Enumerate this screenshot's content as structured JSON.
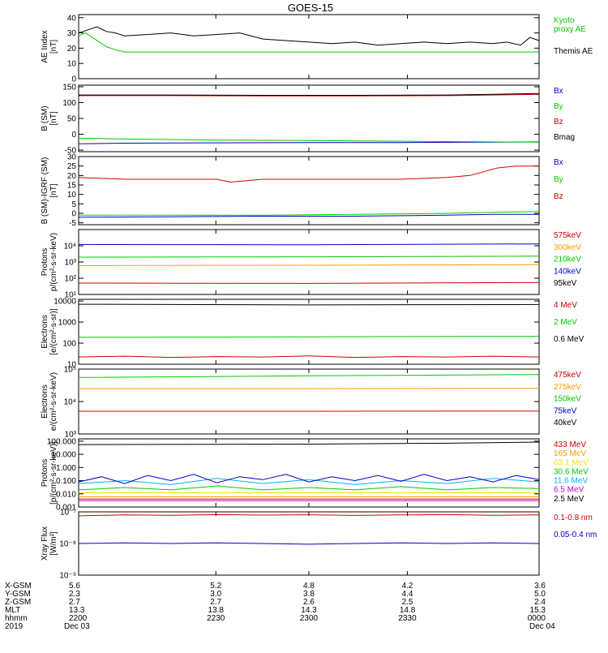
{
  "title": "GOES-15",
  "colors": {
    "black": "#000000",
    "green": "#00cc00",
    "red": "#cc0000",
    "blue": "#0000cc",
    "orange": "#ff9900",
    "cyan": "#00b0ff",
    "magenta": "#cc00cc",
    "yellow": "#e6e600"
  },
  "chart_data": [
    {
      "type": "line",
      "id": "ae",
      "ylabel": [
        "AE Index",
        "[nT]"
      ],
      "scale": "linear",
      "ylim": [
        0,
        42
      ],
      "yticks": [
        0,
        10,
        20,
        30,
        40
      ],
      "yticklabels": [
        "0",
        "10",
        "20",
        "30",
        "40"
      ],
      "series": [
        {
          "name": "Kyoto proxy AE",
          "color": "#00cc00",
          "label_lines": [
            "Kyoto",
            "proxy AE"
          ],
          "x": [
            0,
            0.015,
            0.03,
            0.045,
            0.06,
            0.08,
            0.1,
            0.15,
            0.3,
            0.5,
            0.7,
            0.9,
            1.0
          ],
          "values": [
            28,
            30,
            27,
            24,
            21,
            19,
            17.5,
            17.5,
            17.5,
            17.5,
            17.5,
            17.5,
            17.5
          ]
        },
        {
          "name": "Themis AE",
          "color": "#000000",
          "label_lines": [
            "Themis AE"
          ],
          "x": [
            0,
            0.02,
            0.04,
            0.06,
            0.08,
            0.1,
            0.15,
            0.2,
            0.25,
            0.3,
            0.35,
            0.4,
            0.45,
            0.5,
            0.55,
            0.6,
            0.65,
            0.7,
            0.75,
            0.8,
            0.85,
            0.9,
            0.93,
            0.96,
            0.98,
            1.0
          ],
          "values": [
            30,
            32,
            34,
            31,
            30,
            28,
            29,
            30,
            28,
            29,
            30,
            26,
            25,
            24,
            23,
            24,
            22,
            23,
            24,
            23,
            24,
            23,
            24,
            22,
            27,
            25
          ]
        }
      ]
    },
    {
      "type": "line",
      "id": "bsm",
      "ylabel": [
        "B (SM)",
        "[nT]"
      ],
      "scale": "linear",
      "ylim": [
        -55,
        155
      ],
      "yticks": [
        -50,
        0,
        50,
        100,
        150
      ],
      "yticklabels": [
        "-50",
        "0",
        "50",
        "100",
        "150"
      ],
      "series": [
        {
          "name": "Bx",
          "color": "#0000cc",
          "x": [
            0,
            0.1,
            0.3,
            0.5,
            0.7,
            0.9,
            1.0
          ],
          "values": [
            -30,
            -28,
            -27,
            -26,
            -26,
            -25,
            -24
          ]
        },
        {
          "name": "By",
          "color": "#00cc00",
          "x": [
            0,
            0.1,
            0.3,
            0.5,
            0.7,
            0.9,
            1.0
          ],
          "values": [
            -12,
            -15,
            -18,
            -20,
            -22,
            -24,
            -25
          ]
        },
        {
          "name": "Bz",
          "color": "#cc0000",
          "x": [
            0,
            0.2,
            0.4,
            0.6,
            0.8,
            0.9,
            1.0
          ],
          "values": [
            122,
            122,
            121,
            121,
            122,
            124,
            126
          ]
        },
        {
          "name": "Bmag",
          "color": "#000000",
          "x": [
            0,
            0.2,
            0.4,
            0.6,
            0.8,
            0.9,
            1.0
          ],
          "values": [
            124,
            124,
            123,
            123,
            124,
            126,
            129
          ]
        }
      ]
    },
    {
      "type": "line",
      "id": "bigrf",
      "ylabel": [
        "B (SM)-IGRF (SM)",
        "[nT]"
      ],
      "scale": "linear",
      "ylim": [
        -6,
        30
      ],
      "yticks": [
        -5,
        0,
        5,
        10,
        15,
        20,
        25,
        30
      ],
      "yticklabels": [
        "-5",
        "0",
        "5",
        "10",
        "15",
        "20",
        "25",
        "30"
      ],
      "series": [
        {
          "name": "Bx",
          "color": "#0000cc",
          "x": [
            0,
            0.2,
            0.4,
            0.6,
            0.8,
            0.9,
            1.0
          ],
          "values": [
            -2,
            -1.8,
            -1.5,
            -1.5,
            -1,
            -0.5,
            -0.5
          ]
        },
        {
          "name": "By",
          "color": "#00cc00",
          "x": [
            0,
            0.2,
            0.4,
            0.6,
            0.8,
            0.9,
            1.0
          ],
          "values": [
            -1,
            -1,
            -1,
            -0.5,
            0,
            0.5,
            1
          ]
        },
        {
          "name": "Bz",
          "color": "#cc0000",
          "x": [
            0,
            0.1,
            0.2,
            0.3,
            0.33,
            0.4,
            0.5,
            0.6,
            0.7,
            0.8,
            0.85,
            0.88,
            0.91,
            0.95,
            1.0
          ],
          "values": [
            19,
            18,
            18,
            18,
            16.5,
            18,
            18,
            18,
            18,
            19,
            20,
            22,
            24,
            25,
            25
          ]
        }
      ]
    },
    {
      "type": "line",
      "id": "protons1",
      "ylabel": [
        "Protons",
        "p/(cm²-s-sr-keV)"
      ],
      "scale": "log",
      "ylim": [
        10,
        100000
      ],
      "yticks": [
        10,
        100,
        1000,
        10000
      ],
      "yticklabels": [
        "10¹",
        "10²",
        "10³",
        "10⁴"
      ],
      "series": [
        {
          "name": "575keV",
          "color": "#cc0000",
          "x": [
            0,
            1
          ],
          "values": [
            100000,
            100000
          ]
        },
        {
          "name": "300keV",
          "color": "#ff9900",
          "x": [
            0,
            0.5,
            1
          ],
          "values": [
            600,
            630,
            680
          ]
        },
        {
          "name": "210keV",
          "color": "#00cc00",
          "x": [
            0,
            0.5,
            1
          ],
          "values": [
            2000,
            2100,
            2300
          ]
        },
        {
          "name": "140keV",
          "color": "#0000cc",
          "x": [
            0,
            0.5,
            1
          ],
          "values": [
            12000,
            11500,
            13000
          ]
        },
        {
          "name": "95keV",
          "color": "#000000",
          "x": [
            0,
            1
          ],
          "values": [
            100000,
            100000
          ]
        },
        {
          "name": "",
          "color": "#cc0000",
          "x": [
            0,
            0.5,
            1
          ],
          "values": [
            50,
            48,
            55
          ]
        }
      ]
    },
    {
      "type": "line",
      "id": "electrons1",
      "ylabel": [
        "Electrons",
        "[e/(cm²-s-sr)]"
      ],
      "scale": "log",
      "ylim": [
        10,
        12000
      ],
      "yticks": [
        10,
        100,
        1000,
        10000
      ],
      "yticklabels": [
        "10",
        "100",
        "1000",
        "10000"
      ],
      "series": [
        {
          "name": "4 MeV",
          "color": "#cc0000",
          "x": [
            0,
            0.1,
            0.2,
            0.3,
            0.4,
            0.5,
            0.6,
            0.7,
            0.8,
            0.9,
            1.0
          ],
          "values": [
            22,
            24,
            21,
            23,
            22,
            25,
            21,
            23,
            22,
            24,
            22
          ]
        },
        {
          "name": "2 MeV",
          "color": "#00cc00",
          "x": [
            0,
            0.5,
            1
          ],
          "values": [
            190,
            200,
            210
          ]
        },
        {
          "name": "0.6 MeV",
          "color": "#000000",
          "x": [
            0,
            0.5,
            1
          ],
          "values": [
            7000,
            6500,
            6800
          ]
        }
      ]
    },
    {
      "type": "line",
      "id": "electrons2",
      "ylabel": [
        "Electrons",
        "e/(cm²-s-sr-keV)"
      ],
      "scale": "log",
      "ylim": [
        1000,
        100000
      ],
      "yticks": [
        1000,
        10000,
        100000
      ],
      "yticklabels": [
        "10³",
        "10⁴",
        "10⁵"
      ],
      "series": [
        {
          "name": "475keV",
          "color": "#cc0000",
          "x": [
            0,
            0.5,
            1
          ],
          "values": [
            5000,
            5000,
            5100
          ]
        },
        {
          "name": "275keV",
          "color": "#ff9900",
          "x": [
            0,
            0.5,
            1
          ],
          "values": [
            25000,
            25000,
            25500
          ]
        },
        {
          "name": "150keV",
          "color": "#00cc00",
          "x": [
            0,
            0.5,
            1
          ],
          "values": [
            55000,
            62000,
            68000
          ]
        },
        {
          "name": "75keV",
          "color": "#0000cc",
          "x": [
            0,
            1
          ],
          "values": [
            100000,
            100000
          ]
        },
        {
          "name": "40keV",
          "color": "#000000",
          "x": [
            0,
            1
          ],
          "values": [
            100000,
            100000
          ]
        }
      ]
    },
    {
      "type": "line",
      "id": "protons2",
      "ylabel": [
        "Protons",
        "[p/(cm²-s-sr-keV)]"
      ],
      "scale": "log",
      "ylim": [
        0.001,
        150
      ],
      "yticks": [
        0.001,
        0.01,
        0.1,
        1,
        10,
        100
      ],
      "yticklabels": [
        "0.001",
        "0.010",
        "0.100",
        "1.000",
        "10.000",
        "100.000"
      ],
      "series": [
        {
          "name": "433 MeV",
          "color": "#cc0000",
          "x": [
            0,
            1
          ],
          "values": [
            0.004,
            0.004
          ]
        },
        {
          "name": "165 MeV",
          "color": "#ff9900",
          "x": [
            0,
            1
          ],
          "values": [
            0.006,
            0.006
          ]
        },
        {
          "name": "63.1 MeV",
          "color": "#e6e600",
          "x": [
            0,
            1
          ],
          "values": [
            0.012,
            0.012
          ]
        },
        {
          "name": "30.6 MeV",
          "color": "#00cc00",
          "x": [
            0,
            0.1,
            0.2,
            0.3,
            0.4,
            0.5,
            0.6,
            0.7,
            0.8,
            0.9,
            1.0
          ],
          "values": [
            0.02,
            0.03,
            0.02,
            0.04,
            0.02,
            0.03,
            0.02,
            0.035,
            0.02,
            0.03,
            0.025
          ]
        },
        {
          "name": "11.6 MeV",
          "color": "#00b0ff",
          "x": [
            0,
            0.1,
            0.2,
            0.3,
            0.4,
            0.5,
            0.6,
            0.7,
            0.8,
            0.9,
            1.0
          ],
          "values": [
            0.06,
            0.1,
            0.05,
            0.15,
            0.06,
            0.12,
            0.05,
            0.1,
            0.06,
            0.15,
            0.08
          ]
        },
        {
          "name": "6.5 MeV",
          "color": "#cc00cc",
          "x": [
            0,
            0.5,
            1
          ],
          "values": [
            0.003,
            0.003,
            0.003
          ]
        },
        {
          "name": "2.5 MeV",
          "color": "#000000",
          "x": [
            0,
            0.5,
            0.8,
            1
          ],
          "values": [
            55,
            60,
            70,
            85
          ]
        },
        {
          "name": "",
          "color": "#0000cc",
          "x": [
            0,
            0.05,
            0.1,
            0.15,
            0.2,
            0.25,
            0.3,
            0.35,
            0.4,
            0.45,
            0.5,
            0.55,
            0.6,
            0.65,
            0.7,
            0.75,
            0.8,
            0.85,
            0.9,
            0.95,
            1.0
          ],
          "values": [
            0.08,
            0.2,
            0.06,
            0.25,
            0.1,
            0.3,
            0.07,
            0.2,
            0.12,
            0.3,
            0.08,
            0.2,
            0.1,
            0.25,
            0.09,
            0.3,
            0.1,
            0.2,
            0.08,
            0.25,
            0.12
          ]
        }
      ]
    },
    {
      "type": "line",
      "id": "xray",
      "ylabel": [
        "Xray Flux",
        "[W/m²]"
      ],
      "scale": "log",
      "ylim": [
        1e-09,
        1e-07
      ],
      "yticks": [
        1e-09,
        1e-08,
        1e-07
      ],
      "yticklabels": [
        "10⁻⁹",
        "10⁻⁸",
        "10⁻⁷"
      ],
      "series": [
        {
          "name": "0.1-0.8 nm",
          "color": "#cc0000",
          "x": [
            0,
            0.1,
            0.2,
            0.3,
            0.4,
            0.5,
            0.6,
            0.7,
            0.8,
            0.9,
            1.0
          ],
          "values": [
            7.5e-08,
            8e-08,
            7.8e-08,
            8.2e-08,
            7.9e-08,
            8.1e-08,
            7.7e-08,
            8e-08,
            8.2e-08,
            7.8e-08,
            8e-08
          ]
        },
        {
          "name": "0.05-0.4 nm",
          "color": "#0000cc",
          "x": [
            0,
            0.1,
            0.2,
            0.3,
            0.4,
            0.5,
            0.6,
            0.7,
            0.8,
            0.9,
            1.0
          ],
          "values": [
            1e-08,
            1.05e-08,
            1e-08,
            1.05e-08,
            1e-08,
            9.5e-09,
            1e-08,
            1.05e-08,
            1e-08,
            1.05e-08,
            1e-08
          ]
        }
      ]
    }
  ],
  "axis_table": {
    "row_labels": [
      "X-GSM",
      "Y-GSM",
      "Z-GSM",
      "MLT",
      "hhmm",
      "2019"
    ],
    "columns": [
      {
        "values": [
          "5.6",
          "2.3",
          "2.7",
          "13.3",
          "2200",
          "Dec 03"
        ]
      },
      {
        "values": [
          "5.2",
          "3.0",
          "2.7",
          "13.8",
          "2230",
          ""
        ]
      },
      {
        "values": [
          "4.8",
          "3.8",
          "2.6",
          "14.3",
          "2300",
          ""
        ]
      },
      {
        "values": [
          "4.2",
          "4.4",
          "2.5",
          "14.8",
          "2330",
          ""
        ]
      },
      {
        "values": [
          "3.6",
          "5.0",
          "2.4",
          "15.3",
          "0000",
          "Dec 04"
        ]
      }
    ]
  }
}
